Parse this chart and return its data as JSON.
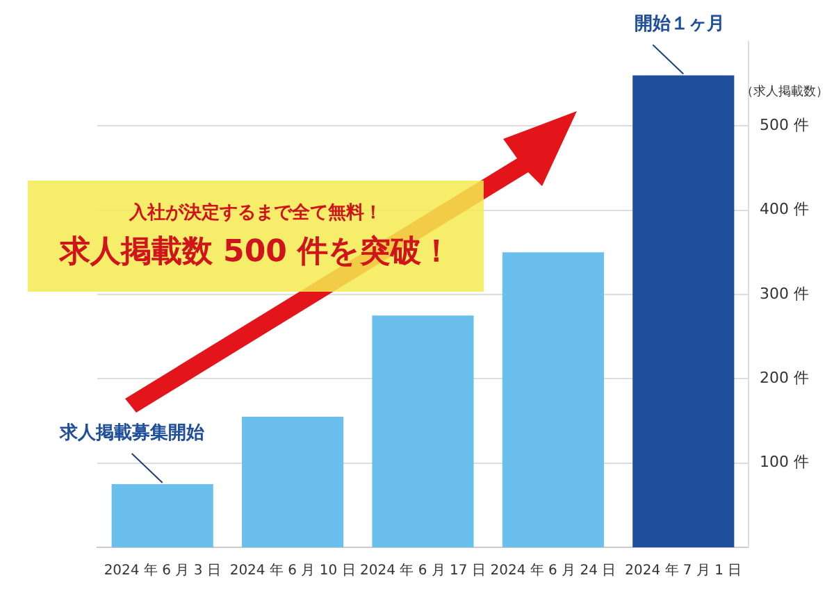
{
  "chart_data": {
    "type": "bar",
    "title": "求人掲載数 500 件を突破！",
    "subtitle": "入社が決定するまで全て無料！",
    "ylabel": "（求人掲載数）",
    "categories": [
      "2024 年 6 月 3 日",
      "2024 年 6 月 10 日",
      "2024 年 6 月 17 日",
      "2024 年 6 月 24 日",
      "2024 年 7 月 1 日"
    ],
    "values": [
      75,
      155,
      275,
      350,
      560
    ],
    "colors": [
      "#6bbfec",
      "#6bbfec",
      "#6bbfec",
      "#6bbfec",
      "#1f4e9c"
    ],
    "ylim": [
      0,
      600
    ],
    "yticks": [
      {
        "value": 100,
        "label": "100 件"
      },
      {
        "value": 200,
        "label": "200 件"
      },
      {
        "value": 300,
        "label": "300 件"
      },
      {
        "value": 400,
        "label": "400 件"
      },
      {
        "value": 500,
        "label": "500 件"
      }
    ],
    "grid": "y",
    "annotations": [
      {
        "text": "求人掲載募集開始",
        "x": "2024 年 6 月 3 日",
        "y": 75
      },
      {
        "text": "開始１ヶ月",
        "x": "2024 年 7 月 1 日",
        "y": 560
      }
    ]
  }
}
